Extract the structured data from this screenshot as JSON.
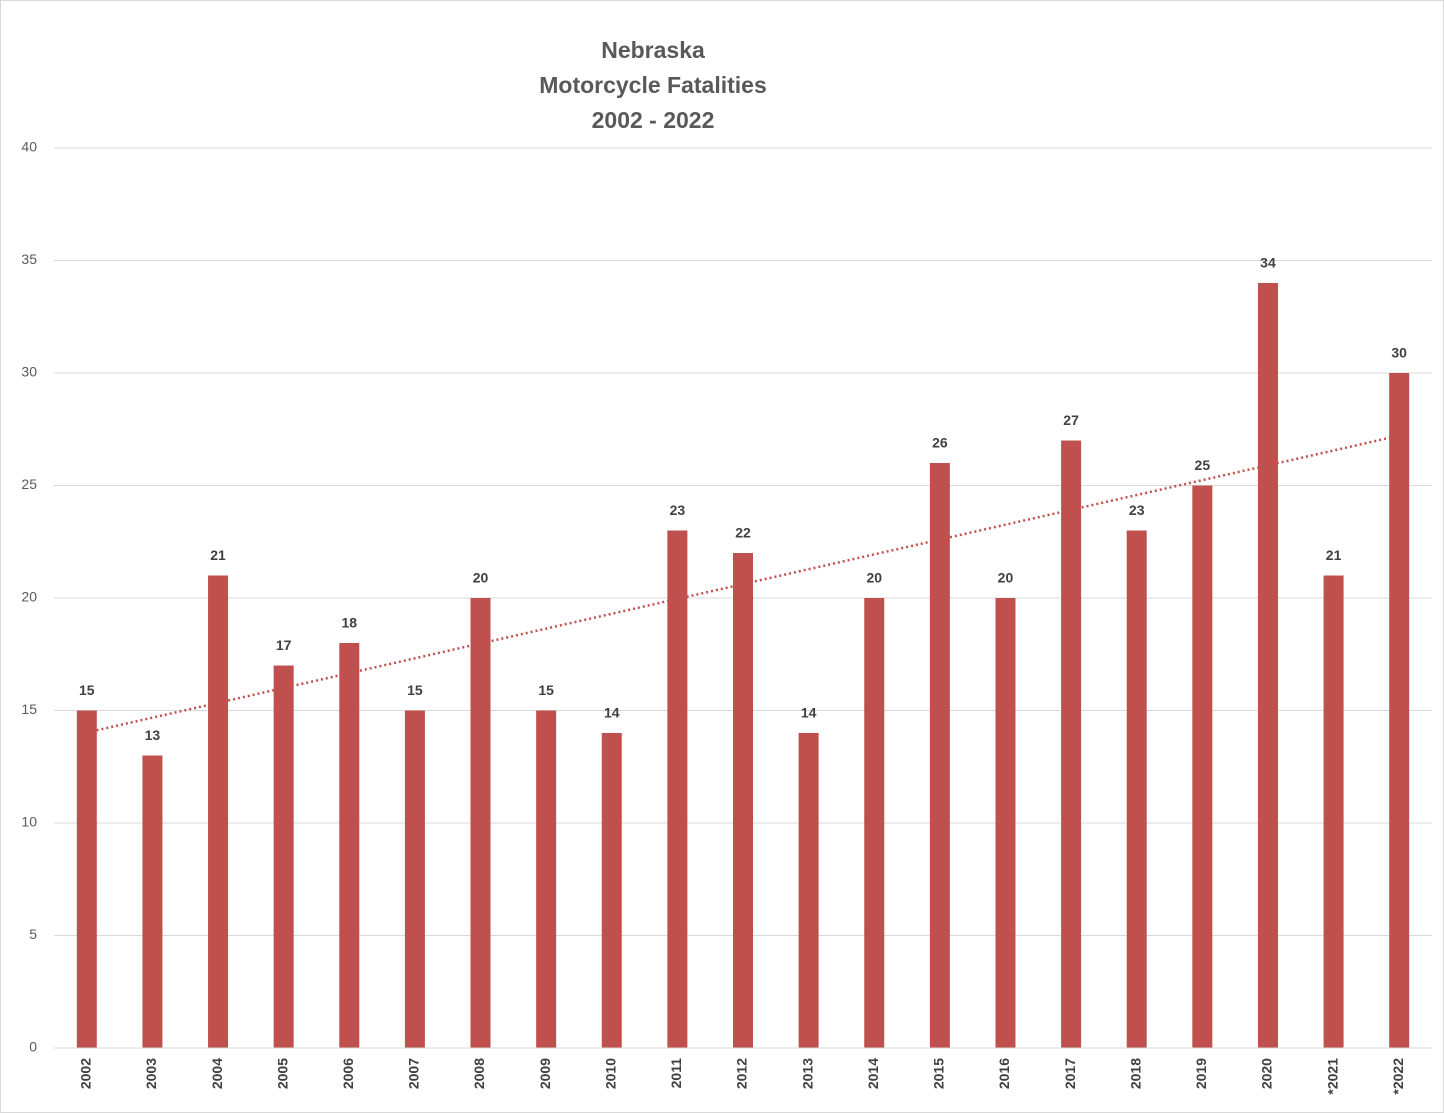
{
  "chart_data": {
    "type": "bar",
    "title": [
      "Nebraska",
      "Motorcycle Fatalities",
      "2002 - 2022"
    ],
    "categories": [
      "2002",
      "2003",
      "2004",
      "2005",
      "2006",
      "2007",
      "2008",
      "2009",
      "2010",
      "2011",
      "2012",
      "2013",
      "2014",
      "2015",
      "2016",
      "2017",
      "2018",
      "2019",
      "2020",
      "*2021",
      "*2022"
    ],
    "values": [
      15,
      13,
      21,
      17,
      18,
      15,
      20,
      15,
      14,
      23,
      22,
      14,
      20,
      26,
      20,
      27,
      23,
      25,
      34,
      21,
      30
    ],
    "color": "#c0504d",
    "ylim": [
      0,
      40
    ],
    "yticks": [
      0,
      5,
      10,
      15,
      20,
      25,
      30,
      35,
      40
    ],
    "grid": true,
    "data_labels": true,
    "trendline": {
      "type": "linear",
      "color": "#c0504d",
      "style": "dotted"
    }
  }
}
